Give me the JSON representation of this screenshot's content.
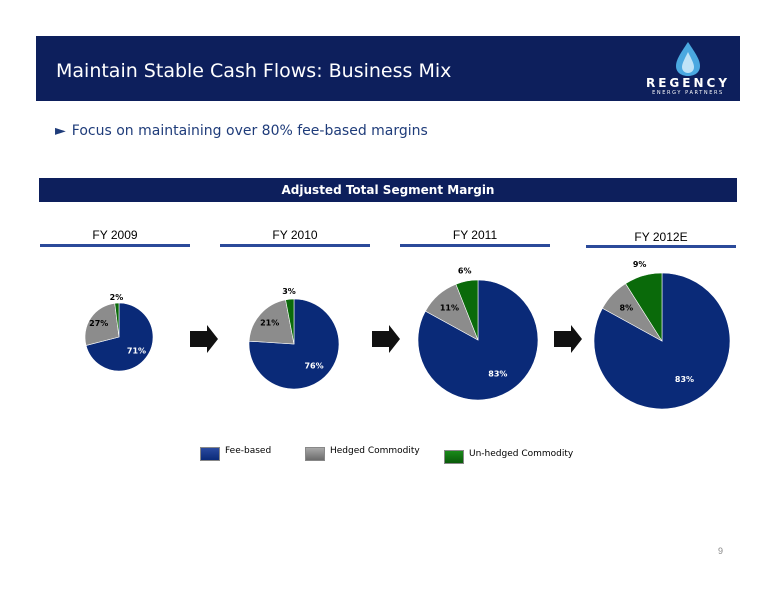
{
  "header": {
    "title": "Maintain Stable Cash Flows: Business Mix"
  },
  "logo": {
    "name": "REGENCY",
    "subtitle": "ENERGY PARTNERS",
    "icon": "flame-drop-icon"
  },
  "bullet": {
    "text": "Focus on maintaining over 80% fee-based margins",
    "marker": "►"
  },
  "section_title": "Adjusted Total Segment Margin",
  "colors": {
    "fee_based": "#0a2a78",
    "hedged": "#8c8c8c",
    "unhedged": "#0a6a0a",
    "header": "#0d1f5c"
  },
  "chart_data": [
    {
      "type": "pie",
      "title": "FY 2009",
      "categories": [
        "Fee-based",
        "Hedged Commodity",
        "Un-hedged Commodity"
      ],
      "values": [
        71,
        27,
        2
      ],
      "labels": [
        "71%",
        "27%",
        "2%"
      ]
    },
    {
      "type": "pie",
      "title": "FY 2010",
      "categories": [
        "Fee-based",
        "Hedged Commodity",
        "Un-hedged Commodity"
      ],
      "values": [
        76,
        21,
        3
      ],
      "labels": [
        "76%",
        "21%",
        "3%"
      ]
    },
    {
      "type": "pie",
      "title": "FY 2011",
      "categories": [
        "Fee-based",
        "Hedged Commodity",
        "Un-hedged Commodity"
      ],
      "values": [
        83,
        11,
        6
      ],
      "labels": [
        "83%",
        "11%",
        "6%"
      ]
    },
    {
      "type": "pie",
      "title": "FY 2012E",
      "categories": [
        "Fee-based",
        "Hedged Commodity",
        "Un-hedged Commodity"
      ],
      "values": [
        83,
        8,
        9
      ],
      "labels": [
        "83%",
        "8%",
        "9%"
      ]
    }
  ],
  "legend": [
    "Fee-based",
    "Hedged Commodity",
    "Un-hedged Commodity"
  ],
  "page_number": "9"
}
